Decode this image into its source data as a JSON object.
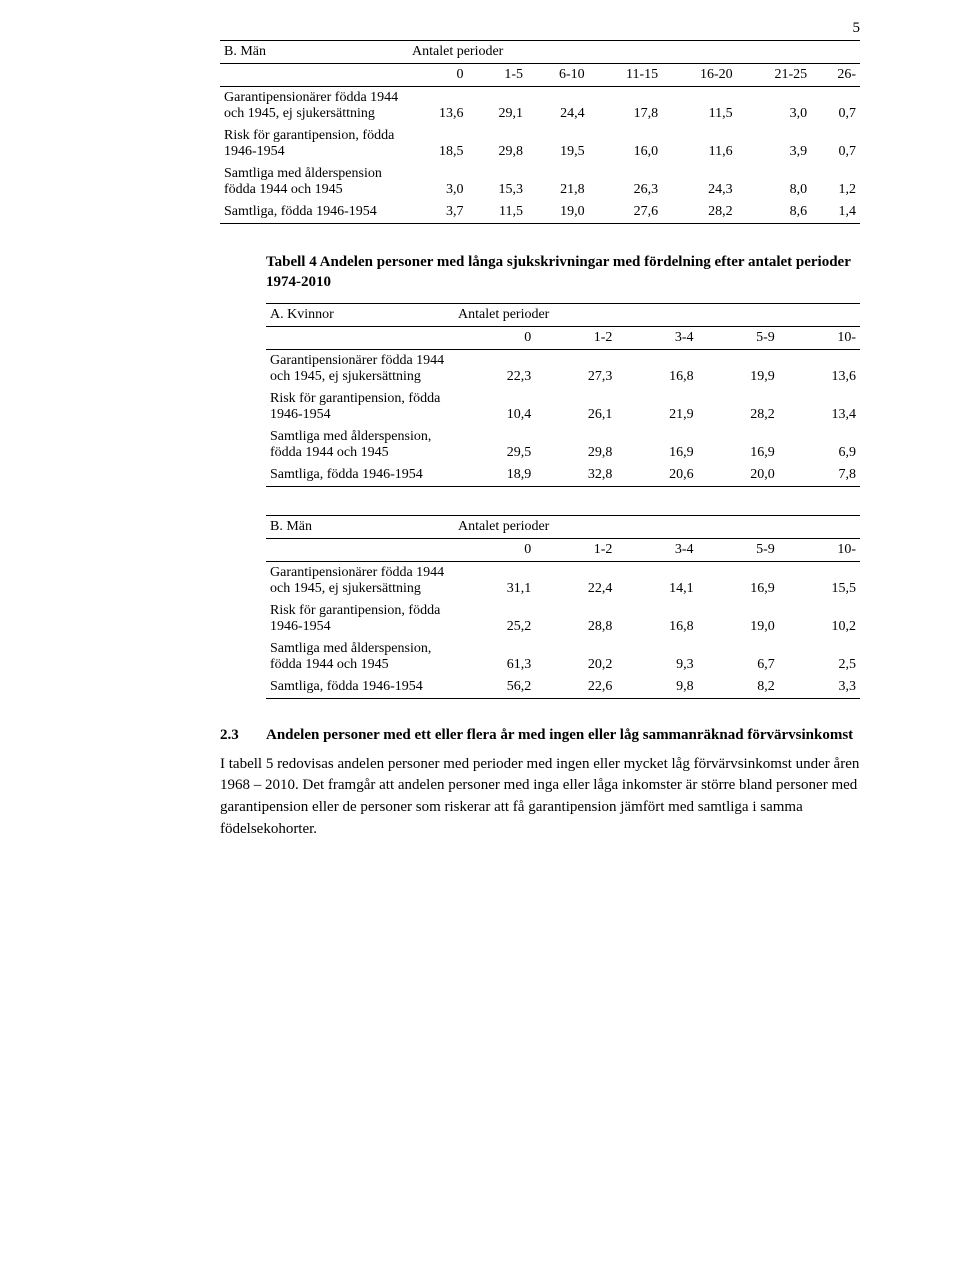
{
  "page_number": "5",
  "table1": {
    "header_corner": "B. Män",
    "periods_label": "Antalet perioder",
    "columns": [
      "0",
      "1-5",
      "6-10",
      "11-15",
      "16-20",
      "21-25",
      "26-"
    ],
    "rows": [
      {
        "label": "Garantipensionärer födda 1944 och 1945, ej sjukersättning",
        "values": [
          "13,6",
          "29,1",
          "24,4",
          "17,8",
          "11,5",
          "3,0",
          "0,7"
        ]
      },
      {
        "label": "Risk för garantipension, födda 1946-1954",
        "values": [
          "18,5",
          "29,8",
          "19,5",
          "16,0",
          "11,6",
          "3,9",
          "0,7"
        ]
      },
      {
        "label": "Samtliga med ålderspension födda 1944 och 1945",
        "values": [
          "3,0",
          "15,3",
          "21,8",
          "26,3",
          "24,3",
          "8,0",
          "1,2"
        ]
      },
      {
        "label": "Samtliga, födda 1946-1954",
        "values": [
          "3,7",
          "11,5",
          "19,0",
          "27,6",
          "28,2",
          "8,6",
          "1,4"
        ]
      }
    ]
  },
  "table4_title": "Tabell 4 Andelen personer med långa sjukskrivningar med fördelning efter antalet perioder 1974-2010",
  "table2": {
    "header_corner": "A. Kvinnor",
    "periods_label": "Antalet perioder",
    "columns": [
      "0",
      "1-2",
      "3-4",
      "5-9",
      "10-"
    ],
    "rows": [
      {
        "label": "Garantipensionärer födda 1944 och 1945, ej sjukersättning",
        "values": [
          "22,3",
          "27,3",
          "16,8",
          "19,9",
          "13,6"
        ]
      },
      {
        "label": "Risk för garantipension, födda 1946-1954",
        "values": [
          "10,4",
          "26,1",
          "21,9",
          "28,2",
          "13,4"
        ]
      },
      {
        "label": "Samtliga med ålderspension, födda 1944 och 1945",
        "values": [
          "29,5",
          "29,8",
          "16,9",
          "16,9",
          "6,9"
        ]
      },
      {
        "label": "Samtliga, födda 1946-1954",
        "values": [
          "18,9",
          "32,8",
          "20,6",
          "20,0",
          "7,8"
        ]
      }
    ]
  },
  "table3": {
    "header_corner": "B. Män",
    "periods_label": "Antalet perioder",
    "columns": [
      "0",
      "1-2",
      "3-4",
      "5-9",
      "10-"
    ],
    "rows": [
      {
        "label": "Garantipensionärer födda 1944 och 1945, ej sjukersättning",
        "values": [
          "31,1",
          "22,4",
          "14,1",
          "16,9",
          "15,5"
        ]
      },
      {
        "label": "Risk för garantipension, födda 1946-1954",
        "values": [
          "25,2",
          "28,8",
          "16,8",
          "19,0",
          "10,2"
        ]
      },
      {
        "label": "Samtliga med ålderspension, födda 1944 och 1945",
        "values": [
          "61,3",
          "20,2",
          "9,3",
          "6,7",
          "2,5"
        ]
      },
      {
        "label": "Samtliga, födda 1946-1954",
        "values": [
          "56,2",
          "22,6",
          "9,8",
          "8,2",
          "3,3"
        ]
      }
    ]
  },
  "section": {
    "number": "2.3",
    "title": "Andelen personer med ett eller flera år med ingen eller låg sammanräknad förvärvsinkomst"
  },
  "paragraph": "I tabell 5 redovisas andelen personer med perioder med ingen  eller mycket låg förvärvsinkomst under åren 1968 – 2010. Det framgår att andelen personer med inga eller låga inkomster är större bland personer med garantipension eller de personer som riskerar att få garantipension jämfört med samtliga i samma födelsekohorter."
}
